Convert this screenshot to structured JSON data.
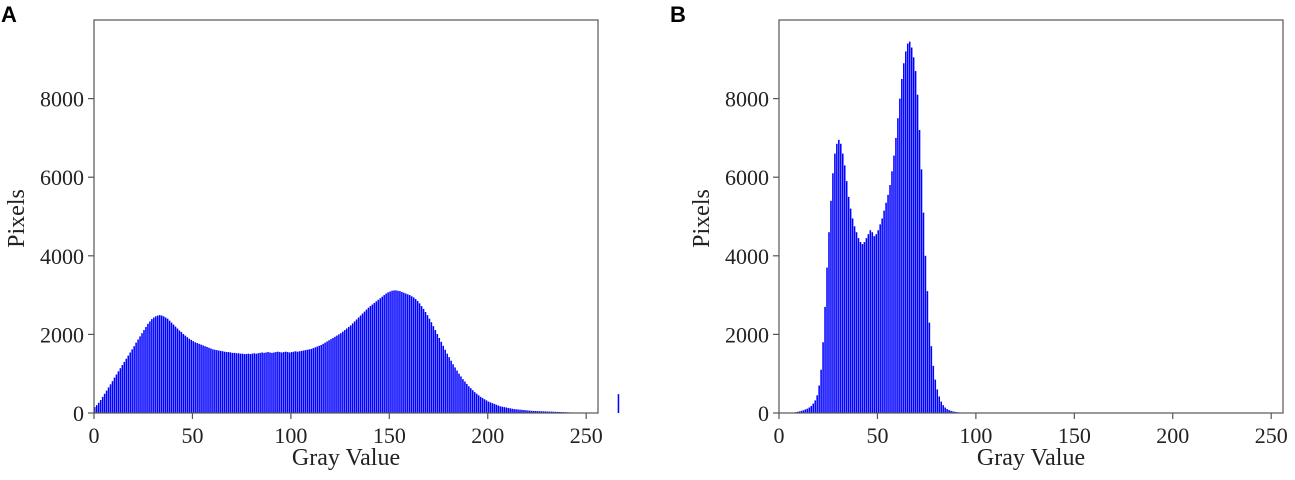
{
  "panels": [
    {
      "letter": "A"
    },
    {
      "letter": "B"
    }
  ],
  "chart_data": [
    {
      "type": "bar",
      "panel": "A",
      "title": "",
      "xlabel": "Gray Value",
      "ylabel": "Pixels",
      "xlim": [
        0,
        256
      ],
      "ylim": [
        0,
        10000
      ],
      "xticks": [
        0,
        50,
        100,
        150,
        200,
        250
      ],
      "yticks": [
        0,
        2000,
        4000,
        6000,
        8000
      ],
      "bar_color": "#0000ff",
      "grid": false,
      "legend": "none",
      "series": [
        {
          "x_start": 0,
          "x_step": 1,
          "values": [
            150,
            200,
            260,
            330,
            410,
            490,
            570,
            650,
            730,
            810,
            900,
            980,
            1060,
            1140,
            1220,
            1300,
            1380,
            1460,
            1540,
            1620,
            1700,
            1790,
            1870,
            1950,
            2030,
            2110,
            2190,
            2270,
            2330,
            2390,
            2430,
            2460,
            2480,
            2490,
            2480,
            2460,
            2430,
            2400,
            2350,
            2300,
            2250,
            2200,
            2150,
            2100,
            2060,
            2010,
            1970,
            1930,
            1890,
            1860,
            1830,
            1800,
            1780,
            1760,
            1740,
            1720,
            1700,
            1680,
            1660,
            1640,
            1620,
            1610,
            1600,
            1590,
            1580,
            1570,
            1560,
            1550,
            1550,
            1540,
            1530,
            1530,
            1520,
            1520,
            1510,
            1510,
            1500,
            1500,
            1510,
            1500,
            1510,
            1520,
            1510,
            1520,
            1530,
            1540,
            1530,
            1540,
            1550,
            1540,
            1530,
            1540,
            1550,
            1560,
            1550,
            1540,
            1550,
            1560,
            1550,
            1540,
            1550,
            1560,
            1570,
            1560,
            1570,
            1580,
            1590,
            1600,
            1610,
            1620,
            1630,
            1650,
            1670,
            1690,
            1710,
            1730,
            1760,
            1790,
            1820,
            1850,
            1880,
            1910,
            1940,
            1970,
            2000,
            2030,
            2070,
            2110,
            2150,
            2190,
            2230,
            2280,
            2330,
            2380,
            2430,
            2480,
            2530,
            2580,
            2630,
            2680,
            2720,
            2760,
            2800,
            2840,
            2880,
            2920,
            2960,
            3000,
            3040,
            3070,
            3090,
            3110,
            3120,
            3120,
            3110,
            3100,
            3080,
            3060,
            3040,
            3020,
            3000,
            2970,
            2940,
            2900,
            2850,
            2790,
            2720,
            2650,
            2570,
            2490,
            2400,
            2310,
            2210,
            2110,
            2010,
            1910,
            1810,
            1710,
            1610,
            1510,
            1420,
            1330,
            1240,
            1160,
            1080,
            1000,
            930,
            860,
            800,
            740,
            680,
            630,
            580,
            530,
            490,
            450,
            410,
            380,
            350,
            320,
            290,
            270,
            250,
            230,
            210,
            190,
            170,
            160,
            150,
            140,
            130,
            120,
            110,
            100,
            95,
            90,
            85,
            80,
            75,
            70,
            65,
            60,
            55,
            52,
            50,
            48,
            46,
            44,
            42,
            40,
            38,
            36,
            34,
            32,
            30,
            28,
            26,
            24,
            22,
            20,
            18,
            16,
            14,
            12,
            10,
            9,
            8,
            7,
            6,
            5,
            4,
            3,
            2,
            2,
            1,
            1,
            1,
            1,
            0,
            0,
            0,
            0,
            0,
            0,
            0,
            0,
            480
          ]
        }
      ]
    },
    {
      "type": "bar",
      "panel": "B",
      "title": "",
      "xlabel": "Gray Value",
      "ylabel": "Pixels",
      "xlim": [
        0,
        256
      ],
      "ylim": [
        0,
        10000
      ],
      "xticks": [
        0,
        50,
        100,
        150,
        200,
        250
      ],
      "yticks": [
        0,
        2000,
        4000,
        6000,
        8000
      ],
      "bar_color": "#0000ff",
      "grid": false,
      "legend": "none",
      "series": [
        {
          "x_start": 0,
          "x_step": 1,
          "values": [
            0,
            0,
            0,
            0,
            0,
            0,
            5,
            10,
            20,
            30,
            40,
            55,
            70,
            90,
            110,
            140,
            180,
            240,
            320,
            450,
            700,
            1100,
            1800,
            2700,
            3700,
            4600,
            5400,
            6100,
            6600,
            6850,
            6950,
            6850,
            6600,
            6300,
            5900,
            5500,
            5200,
            4950,
            4750,
            4600,
            4450,
            4350,
            4300,
            4350,
            4450,
            4550,
            4650,
            4600,
            4500,
            4550,
            4650,
            4800,
            4950,
            5150,
            5350,
            5550,
            5800,
            6150,
            6550,
            7000,
            7500,
            8000,
            8500,
            8900,
            9200,
            9400,
            9450,
            9300,
            9050,
            8700,
            8100,
            7200,
            6200,
            5100,
            4000,
            3100,
            2300,
            1700,
            1200,
            850,
            600,
            420,
            290,
            200,
            140,
            100,
            75,
            55,
            40,
            30,
            22,
            16,
            12,
            9,
            7,
            5,
            4,
            3,
            2,
            2,
            1,
            1,
            1,
            1,
            0,
            0,
            0,
            0,
            0,
            0,
            0
          ]
        }
      ]
    }
  ]
}
